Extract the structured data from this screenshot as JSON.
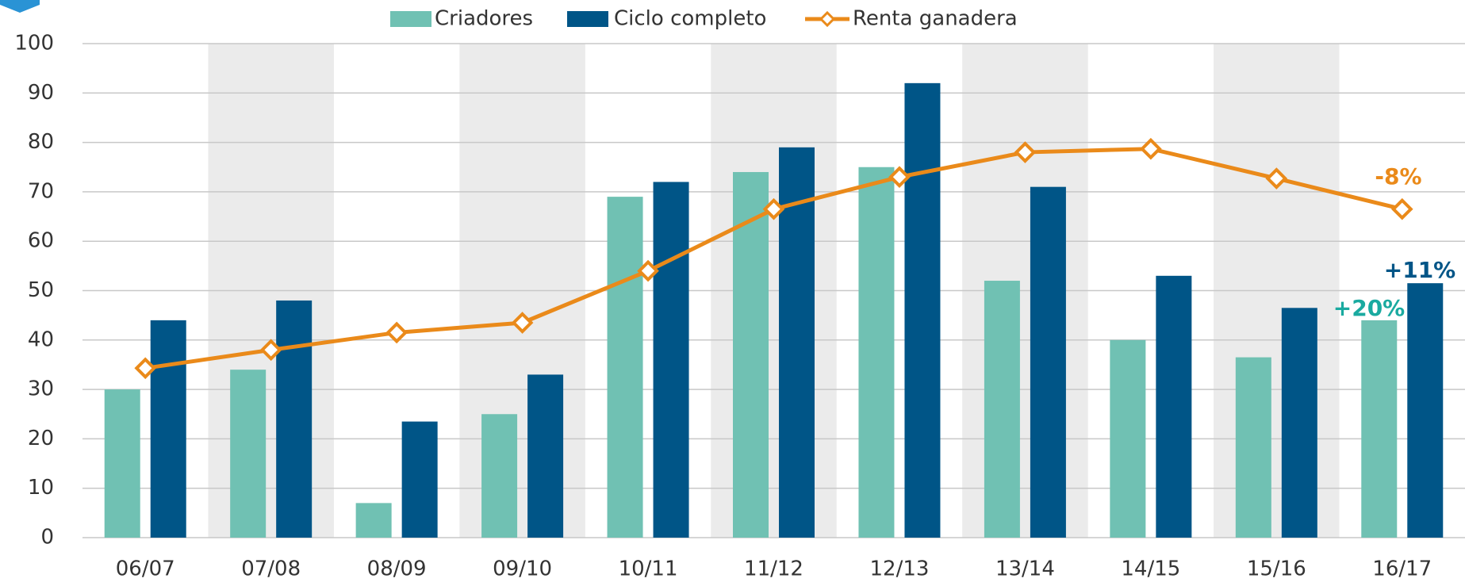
{
  "chart_data": {
    "type": "bar",
    "categories": [
      "06/07",
      "07/08",
      "08/09",
      "09/10",
      "10/11",
      "11/12",
      "12/13",
      "13/14",
      "14/15",
      "15/16",
      "16/17"
    ],
    "series": [
      {
        "name": "Criadores",
        "color": "#70c1b3",
        "type": "bar",
        "values": [
          30,
          34,
          7,
          25,
          69,
          74,
          75,
          52,
          40,
          36.5,
          44
        ]
      },
      {
        "name": "Ciclo completo",
        "color": "#005587",
        "type": "bar",
        "values": [
          44,
          48,
          23.5,
          33,
          72,
          79,
          92,
          71,
          53,
          46.5,
          51.5
        ]
      },
      {
        "name": "Renta ganadera",
        "color": "#ea8a1a",
        "type": "line",
        "values": [
          34.3,
          38,
          41.5,
          43.5,
          54,
          66.5,
          73,
          78,
          78.7,
          72.7,
          66.5
        ]
      }
    ],
    "annotations": [
      {
        "text": "-8%",
        "color": "#ea8a1a"
      },
      {
        "text": "+11%",
        "color": "#005587"
      },
      {
        "text": "+20%",
        "color": "#1aaaa0"
      }
    ],
    "ylim": [
      0,
      100
    ],
    "yticks": [
      0,
      10,
      20,
      30,
      40,
      50,
      60,
      70,
      80,
      90,
      100
    ],
    "grid": true,
    "band_shading": "#ebebeb",
    "legend": "top"
  }
}
